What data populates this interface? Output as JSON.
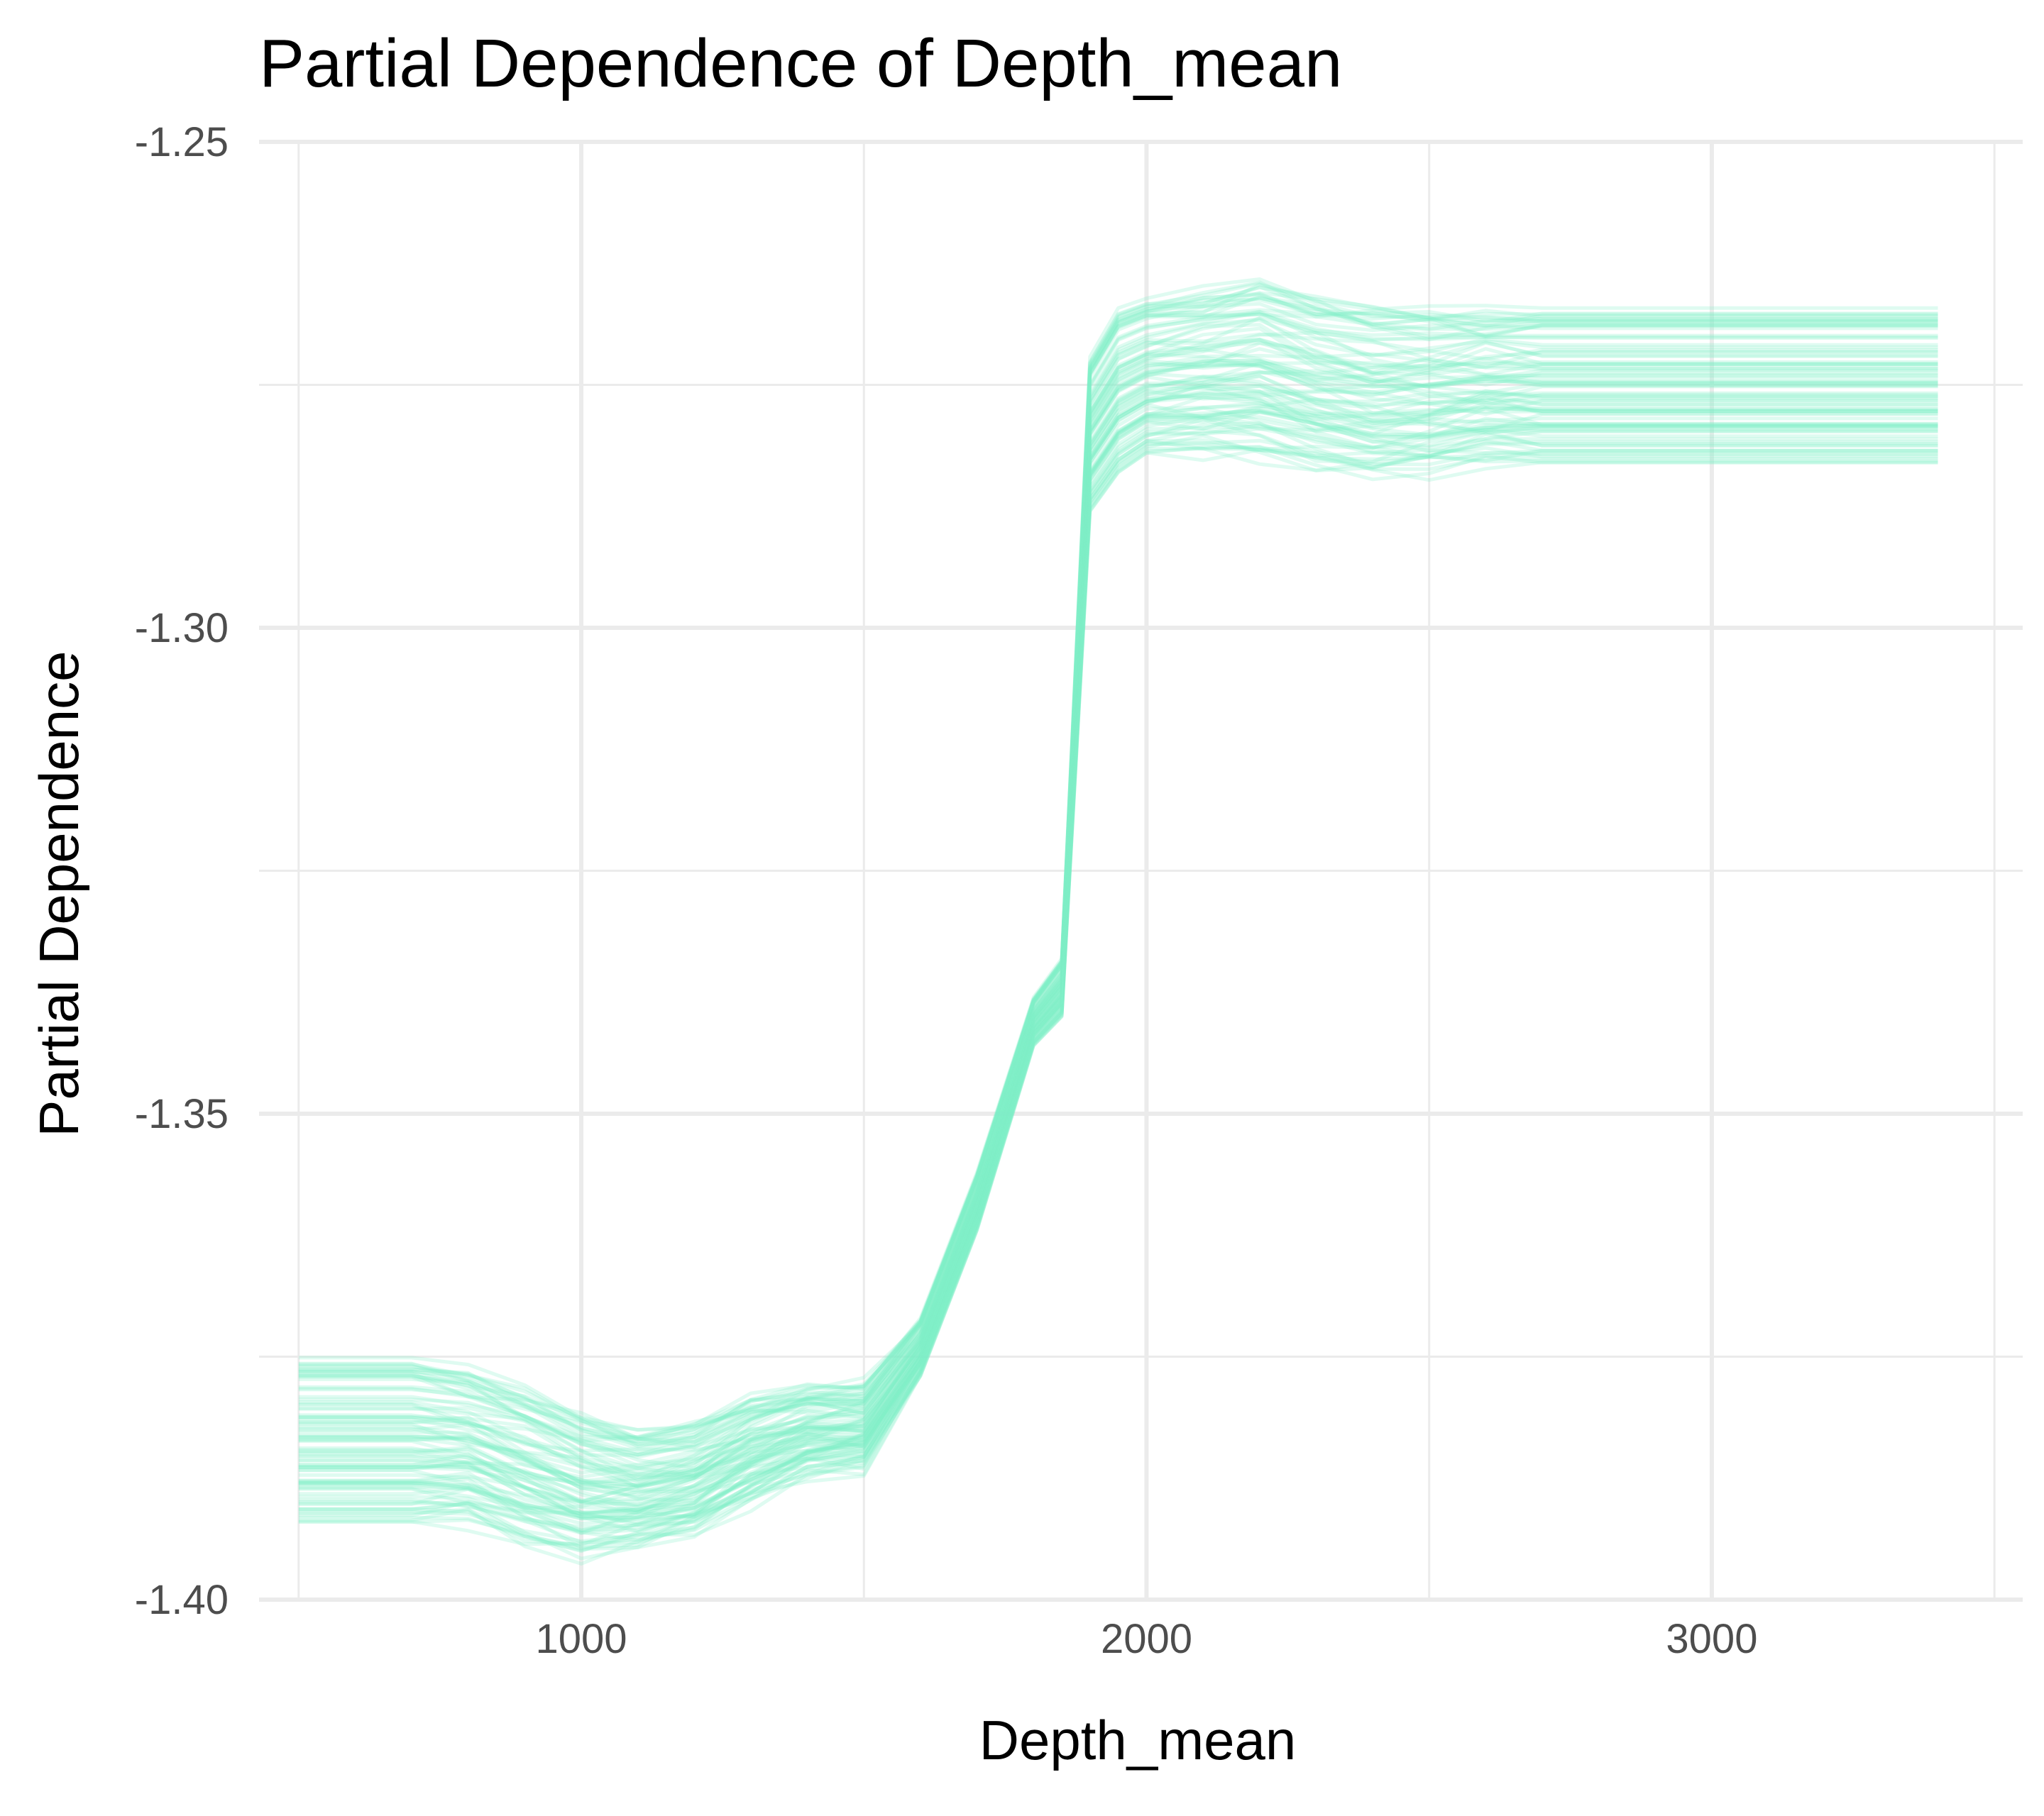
{
  "chart_data": {
    "type": "line",
    "title": "Partial Dependence of Depth_mean",
    "xlabel": "Depth_mean",
    "ylabel": "Partial Dependence",
    "xlim": [
      430,
      3550
    ],
    "ylim": [
      -1.4,
      -1.25
    ],
    "x_ticks": [
      1000,
      2000,
      3000
    ],
    "x_tick_labels": [
      "1000",
      "2000",
      "3000"
    ],
    "y_ticks": [
      -1.4,
      -1.35,
      -1.3,
      -1.25
    ],
    "y_tick_labels": [
      "-1.40",
      "-1.35",
      "-1.30",
      "-1.25"
    ],
    "grid": true,
    "line_color": "#7eeec8",
    "line_opacity": 0.25,
    "num_ice_curves": 90,
    "x": [
      500,
      600,
      700,
      800,
      900,
      1000,
      1100,
      1200,
      1300,
      1400,
      1500,
      1600,
      1700,
      1800,
      1850,
      1900,
      1950,
      2000,
      2100,
      2200,
      2300,
      2400,
      2500,
      2600,
      2700,
      2800,
      3000,
      3200,
      3400
    ],
    "representative_curve": [
      -1.381,
      -1.381,
      -1.381,
      -1.381,
      -1.384,
      -1.387,
      -1.388,
      -1.387,
      -1.384,
      -1.381,
      -1.381,
      -1.374,
      -1.36,
      -1.34,
      -1.337,
      -1.279,
      -1.275,
      -1.274,
      -1.273,
      -1.273,
      -1.274,
      -1.275,
      -1.275,
      -1.274,
      -1.274,
      -1.274,
      -1.274,
      -1.274,
      -1.274
    ],
    "min_curve": [
      -1.392,
      -1.392,
      -1.392,
      -1.392,
      -1.394,
      -1.395,
      -1.394,
      -1.393,
      -1.39,
      -1.387,
      -1.386,
      -1.377,
      -1.362,
      -1.343,
      -1.34,
      -1.288,
      -1.284,
      -1.282,
      -1.282,
      -1.282,
      -1.283,
      -1.284,
      -1.284,
      -1.283,
      -1.283,
      -1.283,
      -1.283,
      -1.283,
      -1.283
    ],
    "max_curve": [
      -1.375,
      -1.375,
      -1.375,
      -1.376,
      -1.378,
      -1.381,
      -1.383,
      -1.382,
      -1.379,
      -1.378,
      -1.378,
      -1.371,
      -1.356,
      -1.338,
      -1.334,
      -1.272,
      -1.267,
      -1.266,
      -1.265,
      -1.264,
      -1.266,
      -1.267,
      -1.267,
      -1.267,
      -1.267,
      -1.267,
      -1.267,
      -1.267,
      -1.267
    ]
  }
}
